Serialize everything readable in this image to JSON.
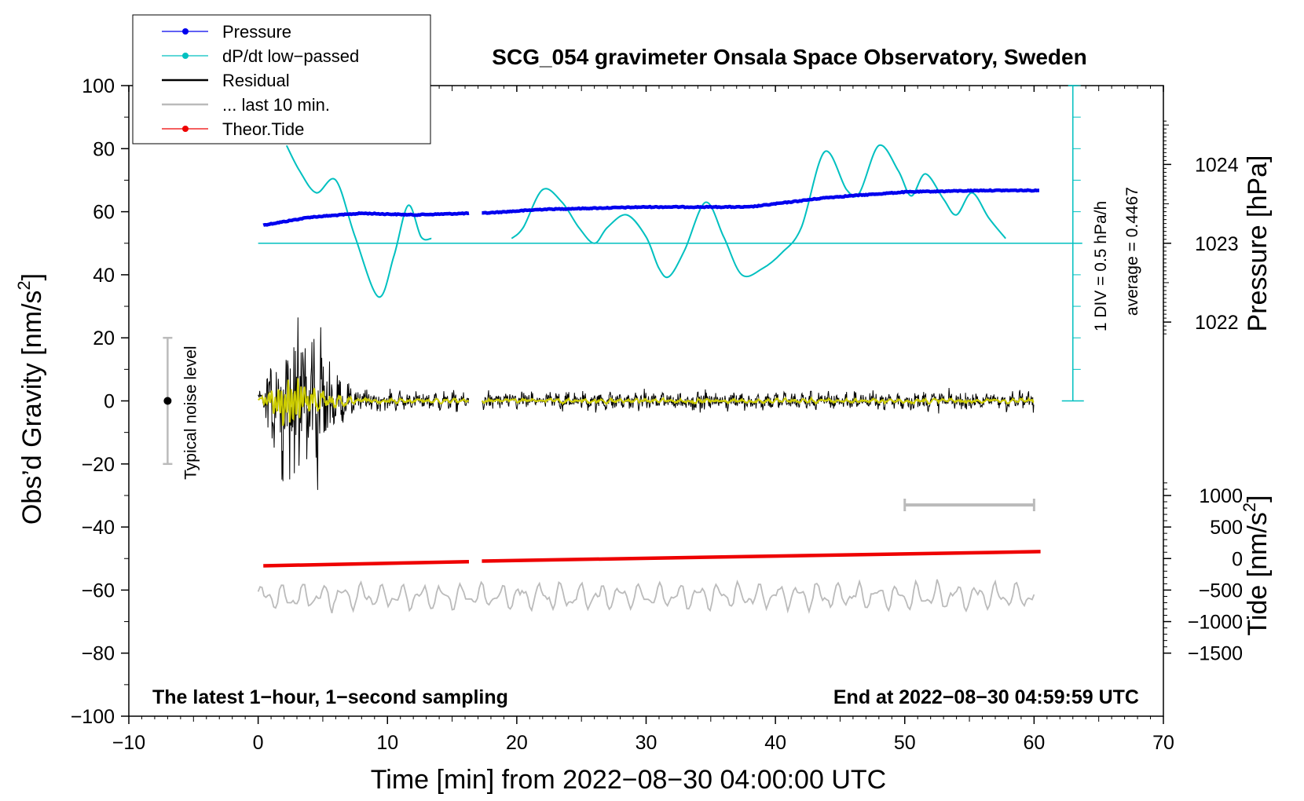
{
  "chart_data": {
    "type": "line",
    "title": "SCG_054 gravimeter Onsala Space Observatory, Sweden",
    "xlabel": "Time [min] from 2022−08−30 04:00:00 UTC",
    "ylabel_left": "Obs’d Gravity [nm/s",
    "ylabel_left_sup": "2",
    "ylabel_left_close": "]",
    "ylabel_pressure": "Pressure [hPa]",
    "ylabel_tide": "Tide [nm/s",
    "ylabel_tide_sup": "2",
    "ylabel_tide_close": "]",
    "xlim": [
      -10,
      70
    ],
    "ylim": [
      -100,
      100
    ],
    "x_ticks": [
      "−10",
      "0",
      "10",
      "20",
      "30",
      "40",
      "50",
      "60",
      "70"
    ],
    "x_tick_values": [
      -10,
      0,
      10,
      20,
      30,
      40,
      50,
      60,
      70
    ],
    "y_ticks": [
      "100",
      "80",
      "60",
      "40",
      "20",
      "0",
      "−20",
      "−40",
      "−60",
      "−80",
      "−100"
    ],
    "y_tick_values": [
      100,
      80,
      60,
      40,
      20,
      0,
      -20,
      -40,
      -60,
      -80,
      -100
    ],
    "pressure_ticks": [
      "1024",
      "1023",
      "1022"
    ],
    "pressure_tick_values": [
      1024,
      1023,
      1022
    ],
    "pressure_axis": {
      "value_at_gravity_50": 1023,
      "hpa_per_gravity_unit": 0.04
    },
    "tide_ticks": [
      "1000",
      "500",
      "0",
      "−500",
      "−1000",
      "−1500"
    ],
    "tide_tick_values": [
      1000,
      500,
      0,
      -500,
      -1000,
      -1500
    ],
    "tide_axis": {
      "gravity_at_zero": -50,
      "nm_per_gravity_unit": 50
    },
    "legend": [
      {
        "label": "Pressure",
        "color": "#0000ee",
        "marker": true
      },
      {
        "label": "dP/dt low−passed",
        "color": "#00c0c0",
        "marker": true
      },
      {
        "label": "Residual",
        "color": "#000000",
        "marker": false
      },
      {
        "label": "... last 10 min.",
        "color": "#bbbbbb",
        "marker": false
      },
      {
        "label": "Theor.Tide",
        "color": "#ee0000",
        "marker": true
      }
    ],
    "note_left": "The latest 1−hour, 1−second sampling",
    "note_right": "End at 2022−08−30 04:59:59 UTC",
    "noise_label": "Typical noise level",
    "noise_bar": {
      "x": -7,
      "center": 0,
      "low": -20,
      "high": 20
    },
    "div_label": "1 DIV = 0.5 hPa/h",
    "average_label": "average = 0.4467",
    "dpdt_scale": {
      "x": 63,
      "zero": 0,
      "top": 100,
      "reference_line": 50
    },
    "ten_min_bar": {
      "x_start": 50,
      "x_end": 60,
      "y": -33
    },
    "gap": [
      16.3,
      17.3
    ],
    "pressure_series": {
      "x": [
        0.4,
        4,
        8,
        12,
        16.3,
        17.3,
        22,
        30,
        38,
        44,
        50,
        56,
        60.5
      ],
      "y": [
        1023.23,
        1023.33,
        1023.38,
        1023.36,
        1023.38,
        1023.38,
        1023.43,
        1023.46,
        1023.46,
        1023.58,
        1023.65,
        1023.67,
        1023.67
      ]
    },
    "dpdt_series": {
      "x": [
        2.2,
        3.2,
        4.5,
        6,
        7.5,
        9.3,
        10.5,
        11.6,
        12.6,
        13.4,
        19.6,
        20.5,
        22,
        23.5,
        24.8,
        26,
        27,
        28.5,
        30,
        31,
        31.8,
        33,
        34.6,
        36,
        37.4,
        39,
        40.5,
        42,
        43.8,
        45.5,
        46.5,
        48,
        49.5,
        50.5,
        51.6,
        53,
        54,
        55.2,
        56.5,
        57.8
      ],
      "y": [
        81,
        73,
        66,
        70,
        52,
        33,
        46,
        62,
        52,
        51.5,
        51.5,
        55,
        67,
        63,
        55,
        50,
        55,
        59,
        52,
        42,
        39.5,
        48,
        63,
        52,
        40,
        42,
        47,
        55,
        79,
        67,
        66,
        81,
        73,
        65,
        72,
        64,
        59,
        66,
        58,
        51.5
      ]
    },
    "residual_series": {
      "x_start": 0,
      "x_end": 60,
      "baseline": 0,
      "typical_amplitude": 4,
      "peak_window": [
        2,
        5
      ],
      "peak_min": -33,
      "peak_max": 30
    },
    "last10_series": {
      "x_start": 0,
      "x_end": 60,
      "center": -62,
      "amplitude": 5
    },
    "tide_series": {
      "x": [
        0.4,
        16.3,
        17.3,
        60.5
      ],
      "y": [
        -52.3,
        -51.0,
        -50.8,
        -47.8
      ]
    }
  }
}
